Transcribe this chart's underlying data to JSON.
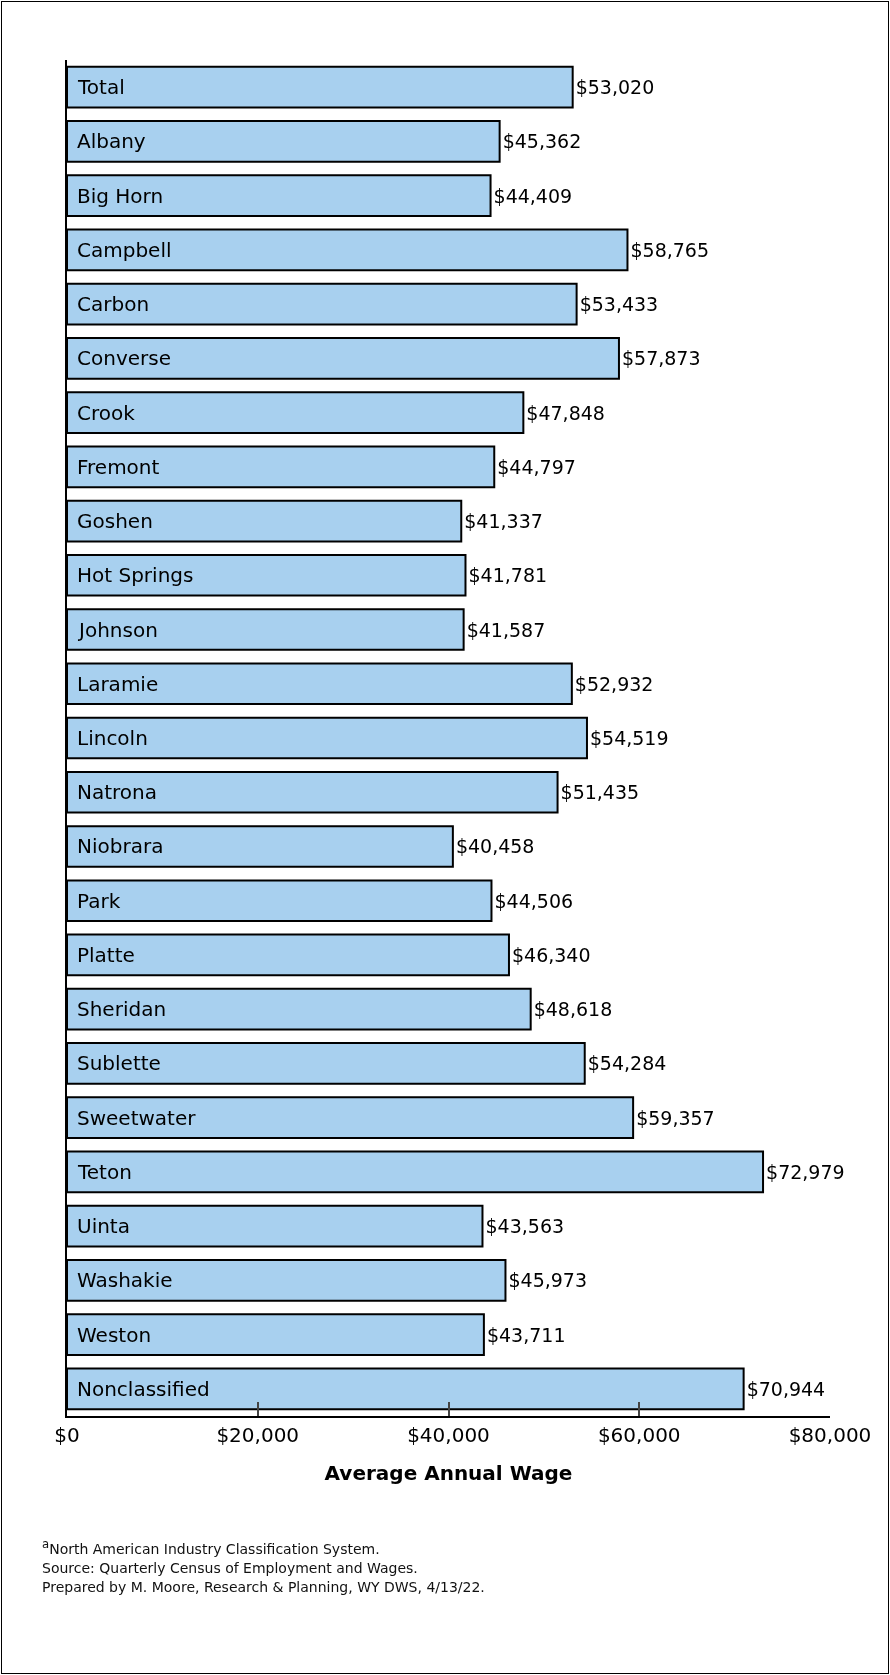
{
  "chart_data": {
    "type": "bar",
    "orientation": "horizontal",
    "categories": [
      "Total",
      "Albany",
      "Big Horn",
      "Campbell",
      "Carbon",
      "Converse",
      "Crook",
      "Fremont",
      "Goshen",
      "Hot Springs",
      "Johnson",
      "Laramie",
      "Lincoln",
      "Natrona",
      "Niobrara",
      "Park",
      "Platte",
      "Sheridan",
      "Sublette",
      "Sweetwater",
      "Teton",
      "Uinta",
      "Washakie",
      "Weston",
      "Nonclassified"
    ],
    "values": [
      53020,
      45362,
      44409,
      58765,
      53433,
      57873,
      47848,
      44797,
      41337,
      41781,
      41587,
      52932,
      54519,
      51435,
      40458,
      44506,
      46340,
      48618,
      54284,
      59357,
      72979,
      43563,
      45973,
      43711,
      70944
    ],
    "value_labels": [
      "$53,020",
      "$45,362",
      "$44,409",
      "$58,765",
      "$53,433",
      "$57,873",
      "$47,848",
      "$44,797",
      "$41,337",
      "$41,781",
      "$41,587",
      "$52,932",
      "$54,519",
      "$51,435",
      "$40,458",
      "$44,506",
      "$46,340",
      "$48,618",
      "$54,284",
      "$59,357",
      "$72,979",
      "$43,563",
      "$45,973",
      "$43,711",
      "$70,944"
    ],
    "color": "#a8d0ef",
    "xlabel": "Average Annual Wage",
    "xlim": [
      0,
      80000
    ],
    "xticks": [
      {
        "value": 0,
        "label": "$0"
      },
      {
        "value": 20000,
        "label": "$20,000"
      },
      {
        "value": 40000,
        "label": "$40,000"
      },
      {
        "value": 60000,
        "label": "$60,000"
      },
      {
        "value": 80000,
        "label": "$80,000"
      }
    ],
    "grid": false,
    "annotations": [
      "$^{a}$North American Industry Classification System.",
      "Source: Quarterly Census of Employment and Wages.",
      "Prepared by M. Moore, Research & Planning, WY DWS, 4/13/22."
    ]
  }
}
